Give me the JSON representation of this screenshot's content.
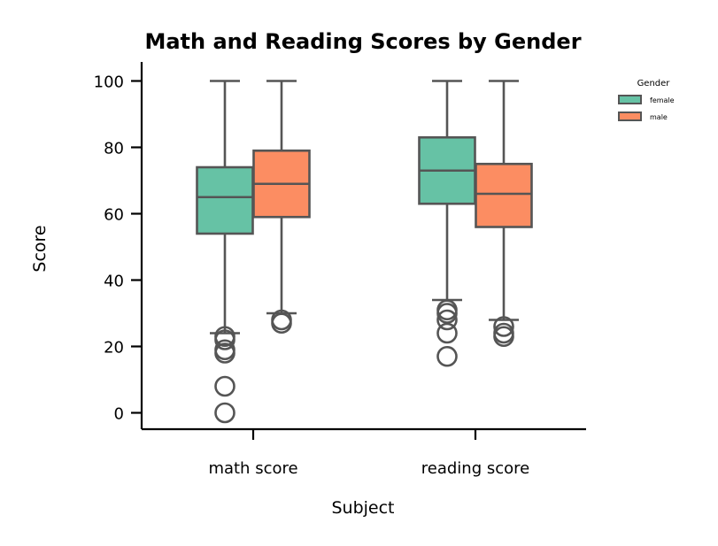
{
  "chart_data": {
    "type": "box",
    "title": "Math and Reading Scores by Gender",
    "xlabel": "Subject",
    "ylabel": "Score",
    "categories": [
      "math score",
      "reading score"
    ],
    "ylim": [
      -5,
      105
    ],
    "yticks": [
      0,
      20,
      40,
      60,
      80,
      100
    ],
    "grid": false,
    "legend": {
      "title": "Gender",
      "placement": "top-right",
      "entries": [
        "female",
        "male"
      ]
    },
    "series": [
      {
        "name": "female",
        "color": "#66c2a5",
        "boxes": [
          {
            "whisker_low": 24,
            "q1": 54,
            "median": 65,
            "q3": 74,
            "whisker_high": 100,
            "outliers": [
              0,
              8,
              18,
              19,
              22,
              23
            ]
          },
          {
            "whisker_low": 34,
            "q1": 63,
            "median": 73,
            "q3": 83,
            "whisker_high": 100,
            "outliers": [
              17,
              24,
              28,
              30,
              31
            ]
          }
        ]
      },
      {
        "name": "male",
        "color": "#fc8d62",
        "boxes": [
          {
            "whisker_low": 30,
            "q1": 59,
            "median": 69,
            "q3": 79,
            "whisker_high": 100,
            "outliers": [
              27,
              28
            ]
          },
          {
            "whisker_low": 28,
            "q1": 56,
            "median": 66,
            "q3": 75,
            "whisker_high": 100,
            "outliers": [
              23,
              24,
              26
            ]
          }
        ]
      }
    ],
    "edge_color": "#555555"
  }
}
